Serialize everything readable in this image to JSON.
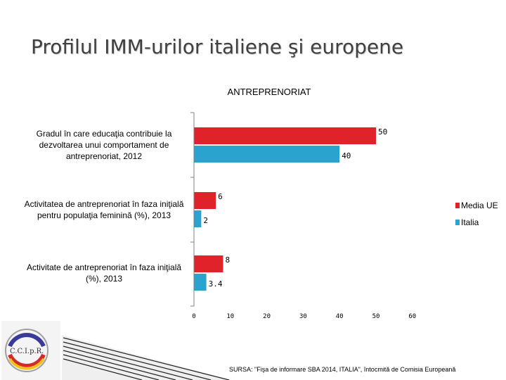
{
  "slide": {
    "title": "Profilul IMM-urilor italiene şi europene",
    "source": "SURSA: \"Fişa de informare SBA 2014, ITALIA\", întocmită de Comisia Europeană",
    "logo_text": "C.C.I.p.R."
  },
  "colors": {
    "media_ue": "#e0222a",
    "italia": "#2aa3cf",
    "axis": "#808080",
    "title": "#404040"
  },
  "chart_data": {
    "type": "bar",
    "orientation": "horizontal",
    "title": "ANTREPRENORIAT",
    "categories": [
      [
        "Gradul în care educaţia contribuie la",
        "dezvoltarea unui comportament de",
        "antreprenoriat, 2012"
      ],
      [
        "Activitatea de antreprenoriat în faza iniţială",
        "pentru populaţia feminină (%), 2013"
      ],
      [
        "Activitate de antreprenoriat în faza iniţială",
        "(%), 2013"
      ]
    ],
    "series": [
      {
        "name": "Media UE",
        "values": [
          50,
          6,
          8
        ],
        "labels": [
          "50",
          "6",
          "8"
        ]
      },
      {
        "name": "Italia",
        "values": [
          40,
          2,
          3.4
        ],
        "labels": [
          "40",
          "2",
          "3.4"
        ]
      }
    ],
    "xlim": [
      0,
      60
    ],
    "xticks": [
      "0",
      "10",
      "20",
      "30",
      "40",
      "50",
      "60"
    ],
    "legend_position": "right",
    "grid": false
  }
}
